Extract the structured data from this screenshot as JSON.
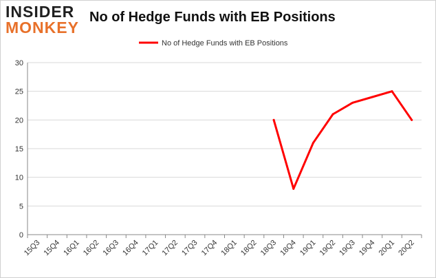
{
  "logo": {
    "line1": "INSIDER",
    "line2": "MONKEY"
  },
  "colors": {
    "series": "#ff0000",
    "grid": "#d9d9d9",
    "axis": "#888888",
    "logo_orange": "#e8712a"
  },
  "chart_data": {
    "type": "line",
    "title": "No of Hedge Funds with EB Positions",
    "legend": {
      "position": "top",
      "entries": [
        "No of Hedge Funds with EB Positions"
      ]
    },
    "categories": [
      "15Q3",
      "15Q4",
      "16Q1",
      "16Q2",
      "16Q3",
      "16Q4",
      "17Q1",
      "17Q2",
      "17Q3",
      "17Q4",
      "18Q1",
      "18Q2",
      "18Q3",
      "18Q4",
      "19Q1",
      "19Q2",
      "19Q3",
      "19Q4",
      "20Q1",
      "20Q2"
    ],
    "series": [
      {
        "name": "No of Hedge Funds with EB Positions",
        "values": [
          null,
          null,
          null,
          null,
          null,
          null,
          null,
          null,
          null,
          null,
          null,
          null,
          20,
          8,
          16,
          21,
          23,
          24,
          25,
          20
        ]
      }
    ],
    "ylim": [
      0,
      30
    ],
    "yticks": [
      0,
      5,
      10,
      15,
      20,
      25,
      30
    ],
    "grid": true,
    "xlabel": "",
    "ylabel": ""
  }
}
